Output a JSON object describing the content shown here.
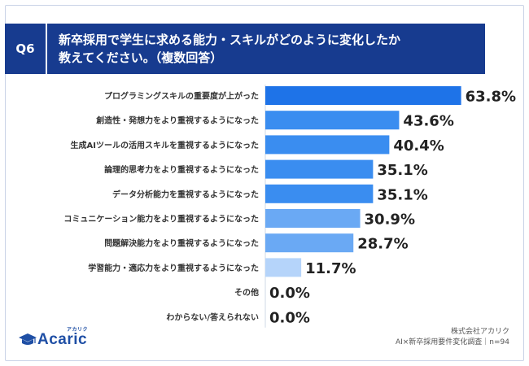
{
  "header": {
    "badge": "Q6",
    "title_line1": "新卒採用で学生に求める能力・スキルがどのように変化したか",
    "title_line2": "教えてください。（複数回答）"
  },
  "chart_data": {
    "type": "bar",
    "orientation": "horizontal",
    "unit": "%",
    "categories": [
      "プログラミングスキルの重要度が上がった",
      "創造性・発想力をより重視するようになった",
      "生成AIツールの活用スキルを重視するようになった",
      "論理的思考力をより重視するようになった",
      "データ分析能力を重視するようになった",
      "コミュニケーション能力をより重視するようになった",
      "問題解決能力をより重視するようになった",
      "学習能力・適応力をより重視するようになった",
      "その他",
      "わからない/答えられない"
    ],
    "values": [
      63.8,
      43.6,
      40.4,
      35.1,
      35.1,
      30.9,
      28.7,
      11.7,
      0.0,
      0.0
    ],
    "value_labels": [
      "63.8%",
      "43.6%",
      "40.4%",
      "35.1%",
      "35.1%",
      "30.9%",
      "28.7%",
      "11.7%",
      "0.0%",
      "0.0%"
    ],
    "bar_colors": [
      "#1e73e8",
      "#3a8df0",
      "#3a8df0",
      "#3a8df0",
      "#3a8df0",
      "#6aa9f4",
      "#6aa9f4",
      "#b5d4fa",
      "#b5d4fa",
      "#b5d4fa"
    ],
    "xlim": [
      0,
      70
    ],
    "grid": false
  },
  "logo": {
    "name": "Acaric",
    "ruby": "アカリク",
    "icon": "graduation-cap-icon",
    "color": "#1f4fa5"
  },
  "footer": {
    "company": "株式会社アカリク",
    "survey": "AI×新卒採用要件変化調査｜n=94"
  }
}
